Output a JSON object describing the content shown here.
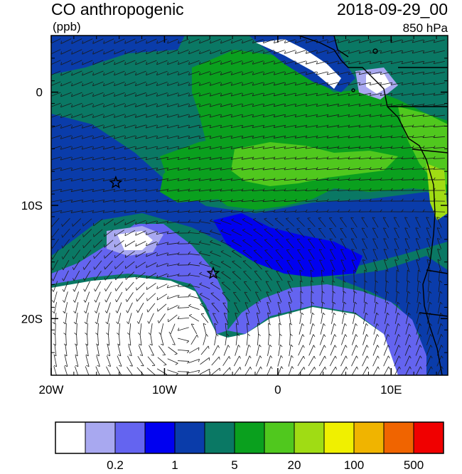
{
  "title": "CO anthropogenic",
  "units": "(ppb)",
  "datetime": "2018-09-29_00",
  "level": "850 hPa",
  "axes": {
    "x_ticks": [
      {
        "label": "20W",
        "lon": -20
      },
      {
        "label": "10W",
        "lon": -10
      },
      {
        "label": "0",
        "lon": 0
      },
      {
        "label": "10E",
        "lon": 10
      }
    ],
    "y_ticks": [
      {
        "label": "0",
        "lat": 0
      },
      {
        "label": "10S",
        "lat": -10
      },
      {
        "label": "20S",
        "lat": -20
      }
    ],
    "lon_range": [
      -20,
      15
    ],
    "lat_range": [
      -25,
      5
    ]
  },
  "markers": [
    {
      "name": "station-star",
      "lon": -14.3,
      "lat": -8.0
    },
    {
      "name": "station-star",
      "lon": -5.7,
      "lat": -16.0
    }
  ],
  "colorbar": {
    "colors": [
      "#ffffff",
      "#a8a8f0",
      "#6464f0",
      "#0000f0",
      "#0a3caa",
      "#0a7864",
      "#0aa01e",
      "#50c81e",
      "#a0dc14",
      "#f0f000",
      "#f0b400",
      "#f06400",
      "#f00000"
    ],
    "labels": [
      {
        "text": "0.2",
        "boundary": 2
      },
      {
        "text": "1",
        "boundary": 4
      },
      {
        "text": "5",
        "boundary": 6
      },
      {
        "text": "20",
        "boundary": 8
      },
      {
        "text": "100",
        "boundary": 10
      },
      {
        "text": "500",
        "boundary": 12
      }
    ]
  }
}
